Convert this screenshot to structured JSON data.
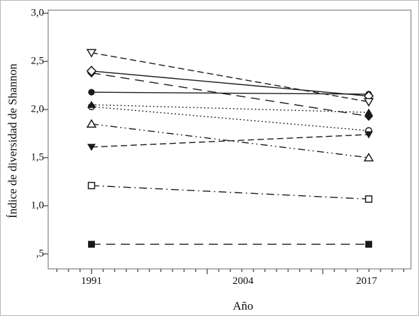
{
  "chart_data": {
    "type": "line",
    "title": "",
    "xlabel": "Año",
    "ylabel": "Índice de diversidad de Shannon",
    "x": [
      1991,
      2017
    ],
    "x_tick_labels": [
      "1991",
      "2004",
      "2017"
    ],
    "y_tick_labels": [
      "3,0",
      "2,5",
      "2,0",
      "1,5",
      "1,0",
      ",5"
    ],
    "y_tick_values": [
      3.0,
      2.5,
      2.0,
      1.5,
      1.0,
      0.5
    ],
    "xlim": [
      1987,
      2021
    ],
    "ylim": [
      0.34,
      3.03
    ],
    "grid": false,
    "legend": "none",
    "series": [
      {
        "name": "filled-diamond-longdash",
        "marker": "diamond-filled",
        "line": "longdash",
        "values": [
          2.38,
          1.93
        ]
      },
      {
        "name": "filled-circle-solid",
        "marker": "circle-filled",
        "line": "solid",
        "values": [
          2.18,
          2.16
        ]
      },
      {
        "name": "open-circle-dotted",
        "marker": "circle-open",
        "line": "dot",
        "values": [
          2.03,
          1.78
        ]
      },
      {
        "name": "filled-up-triangle-dotted",
        "marker": "triangle-up-filled",
        "line": "dot",
        "values": [
          2.05,
          1.97
        ]
      },
      {
        "name": "filled-down-triangle-dashed",
        "marker": "triangle-down-filled",
        "line": "dash",
        "values": [
          1.61,
          1.74
        ]
      },
      {
        "name": "open-up-triangle-dashdotdot",
        "marker": "triangle-up-open",
        "line": "dashdotdot",
        "values": [
          1.85,
          1.5
        ]
      },
      {
        "name": "open-square-dashdot",
        "marker": "square-open",
        "line": "dashdot",
        "values": [
          1.21,
          1.07
        ]
      },
      {
        "name": "filled-square-longdash",
        "marker": "square-filled",
        "line": "longdash",
        "values": [
          0.6,
          0.6
        ]
      },
      {
        "name": "open-diamond-solid",
        "marker": "diamond-open",
        "line": "solid",
        "values": [
          2.4,
          2.14
        ]
      },
      {
        "name": "open-down-triangle-dashed",
        "marker": "triangle-down-open",
        "line": "dash",
        "values": [
          2.59,
          2.08
        ]
      }
    ],
    "colors": {
      "line": "#1a1a1a",
      "frame": "#8a8a8a",
      "tick": "#3c3c3c",
      "background": "#ffffff"
    }
  }
}
